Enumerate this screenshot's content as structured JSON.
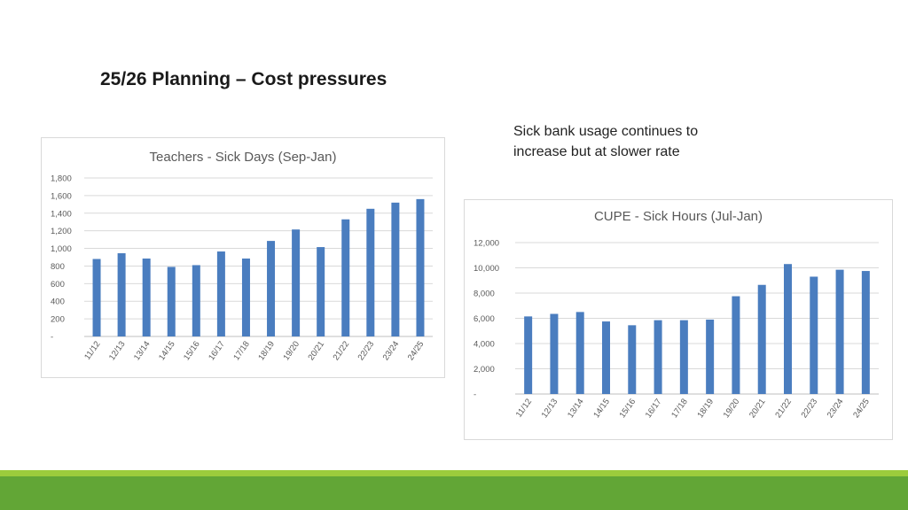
{
  "slide": {
    "title": "25/26 Planning – Cost pressures",
    "note_lines": [
      "Sick bank usage continues to",
      "increase but at slower rate"
    ]
  },
  "colors": {
    "bar": "#4a7dbf",
    "grid": "#d9d9d9",
    "axis_text": "#595959",
    "footer_light": "#9ccc3c",
    "footer_dark": "#62a636"
  },
  "chart_data": [
    {
      "type": "bar",
      "title": "Teachers - Sick Days (Sep-Jan)",
      "categories": [
        "11/12",
        "12/13",
        "13/14",
        "14/15",
        "15/16",
        "16/17",
        "17/18",
        "18/19",
        "19/20",
        "20/21",
        "21/22",
        "22/23",
        "23/24",
        "24/25"
      ],
      "values": [
        880,
        945,
        885,
        790,
        810,
        965,
        885,
        1085,
        1215,
        1015,
        1330,
        1450,
        1520,
        1560
      ],
      "yticks": [
        "-",
        "200",
        "400",
        "600",
        "800",
        "1,000",
        "1,200",
        "1,400",
        "1,600",
        "1,800"
      ],
      "ylim": [
        0,
        1800
      ],
      "grid": true
    },
    {
      "type": "bar",
      "title": "CUPE - Sick Hours (Jul-Jan)",
      "categories": [
        "11/12",
        "12/13",
        "13/14",
        "14/15",
        "15/16",
        "16/17",
        "17/18",
        "18/19",
        "19/20",
        "20/21",
        "21/22",
        "22/23",
        "23/24",
        "24/25"
      ],
      "values": [
        6150,
        6350,
        6500,
        5750,
        5450,
        5850,
        5850,
        5900,
        7750,
        8650,
        10300,
        9300,
        9850,
        9750
      ],
      "yticks": [
        "-",
        "2,000",
        "4,000",
        "6,000",
        "8,000",
        "10,000",
        "12,000"
      ],
      "ylim": [
        0,
        12000
      ],
      "grid": true
    }
  ]
}
